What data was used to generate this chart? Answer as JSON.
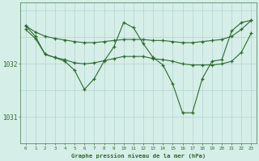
{
  "x": [
    0,
    1,
    2,
    3,
    4,
    5,
    6,
    7,
    8,
    9,
    10,
    11,
    12,
    13,
    14,
    15,
    16,
    17,
    18,
    19,
    20,
    21,
    22,
    23
  ],
  "line_wavy": [
    1032.72,
    1032.52,
    1032.18,
    1032.12,
    1032.05,
    1031.88,
    1031.52,
    1031.72,
    1032.05,
    1032.32,
    1032.78,
    1032.68,
    1032.38,
    1032.12,
    1031.98,
    1031.62,
    1031.08,
    1031.08,
    1031.72,
    1032.05,
    1032.08,
    1032.62,
    1032.78,
    1032.82
  ],
  "line_trend_upper": [
    1032.72,
    1032.6,
    1032.52,
    1032.48,
    1032.45,
    1032.42,
    1032.4,
    1032.4,
    1032.42,
    1032.44,
    1032.46,
    1032.46,
    1032.46,
    1032.44,
    1032.44,
    1032.42,
    1032.4,
    1032.4,
    1032.42,
    1032.44,
    1032.46,
    1032.52,
    1032.65,
    1032.82
  ],
  "line_trend_lower": [
    1032.65,
    1032.48,
    1032.18,
    1032.12,
    1032.08,
    1032.02,
    1032.0,
    1032.02,
    1032.06,
    1032.1,
    1032.14,
    1032.14,
    1032.14,
    1032.1,
    1032.08,
    1032.05,
    1032.0,
    1031.98,
    1031.98,
    1031.98,
    1032.0,
    1032.05,
    1032.22,
    1032.58
  ],
  "background_color": "#d6eee8",
  "grid_color": "#aacccc",
  "line_color": "#2d6a2d",
  "ylabel_values": [
    1031,
    1032
  ],
  "xlabel": "Graphe pression niveau de la mer (hPa)",
  "ylim": [
    1030.5,
    1033.15
  ],
  "xlim": [
    -0.5,
    23.5
  ],
  "figsize": [
    3.2,
    2.0
  ],
  "dpi": 100
}
